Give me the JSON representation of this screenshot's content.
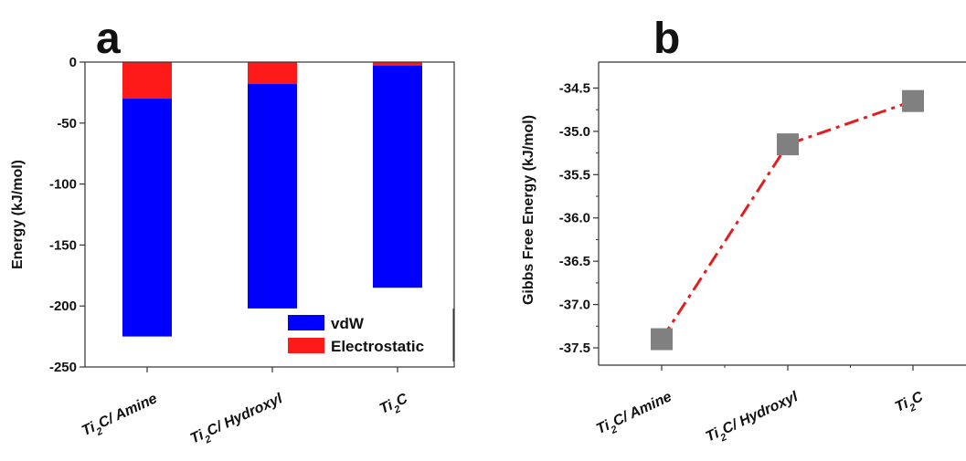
{
  "chart_data": [
    {
      "panel_label": "a",
      "type": "bar",
      "stacked": true,
      "categories": [
        "Ti2C/ Amine",
        "Ti2C/ Hydroxyl",
        "Ti2C"
      ],
      "series": [
        {
          "name": "vdW",
          "color": "#0000ff",
          "values": [
            -195,
            -184,
            -182
          ]
        },
        {
          "name": "Electrostatic",
          "color": "#ff1a1a",
          "values": [
            -30,
            -18,
            -3
          ]
        }
      ],
      "ylabel": "Energy (kJ/mol)",
      "ylim": [
        -250,
        0
      ],
      "yticks": [
        0,
        -50,
        -100,
        -150,
        -200,
        -250
      ],
      "legend": "bottom-right"
    },
    {
      "panel_label": "b",
      "type": "line",
      "categories": [
        "Ti2C/ Amine",
        "Ti2C/ Hydroxyl",
        "Ti2C"
      ],
      "series": [
        {
          "values": [
            -37.4,
            -35.15,
            -34.65
          ],
          "line_color": "#e02020",
          "marker_color": "#808080"
        }
      ],
      "ylabel": "Gibbs Free Energy (kJ/mol)",
      "ylim": [
        -37.7,
        -34.2
      ],
      "yticks": [
        -34.5,
        -35.0,
        -35.5,
        -36.0,
        -36.5,
        -37.0,
        -37.5
      ],
      "ytick_labels": [
        "-34.5",
        "-35.0",
        "-35.5",
        "-36.0",
        "-36.5",
        "-37.0",
        "-37.5"
      ]
    }
  ]
}
